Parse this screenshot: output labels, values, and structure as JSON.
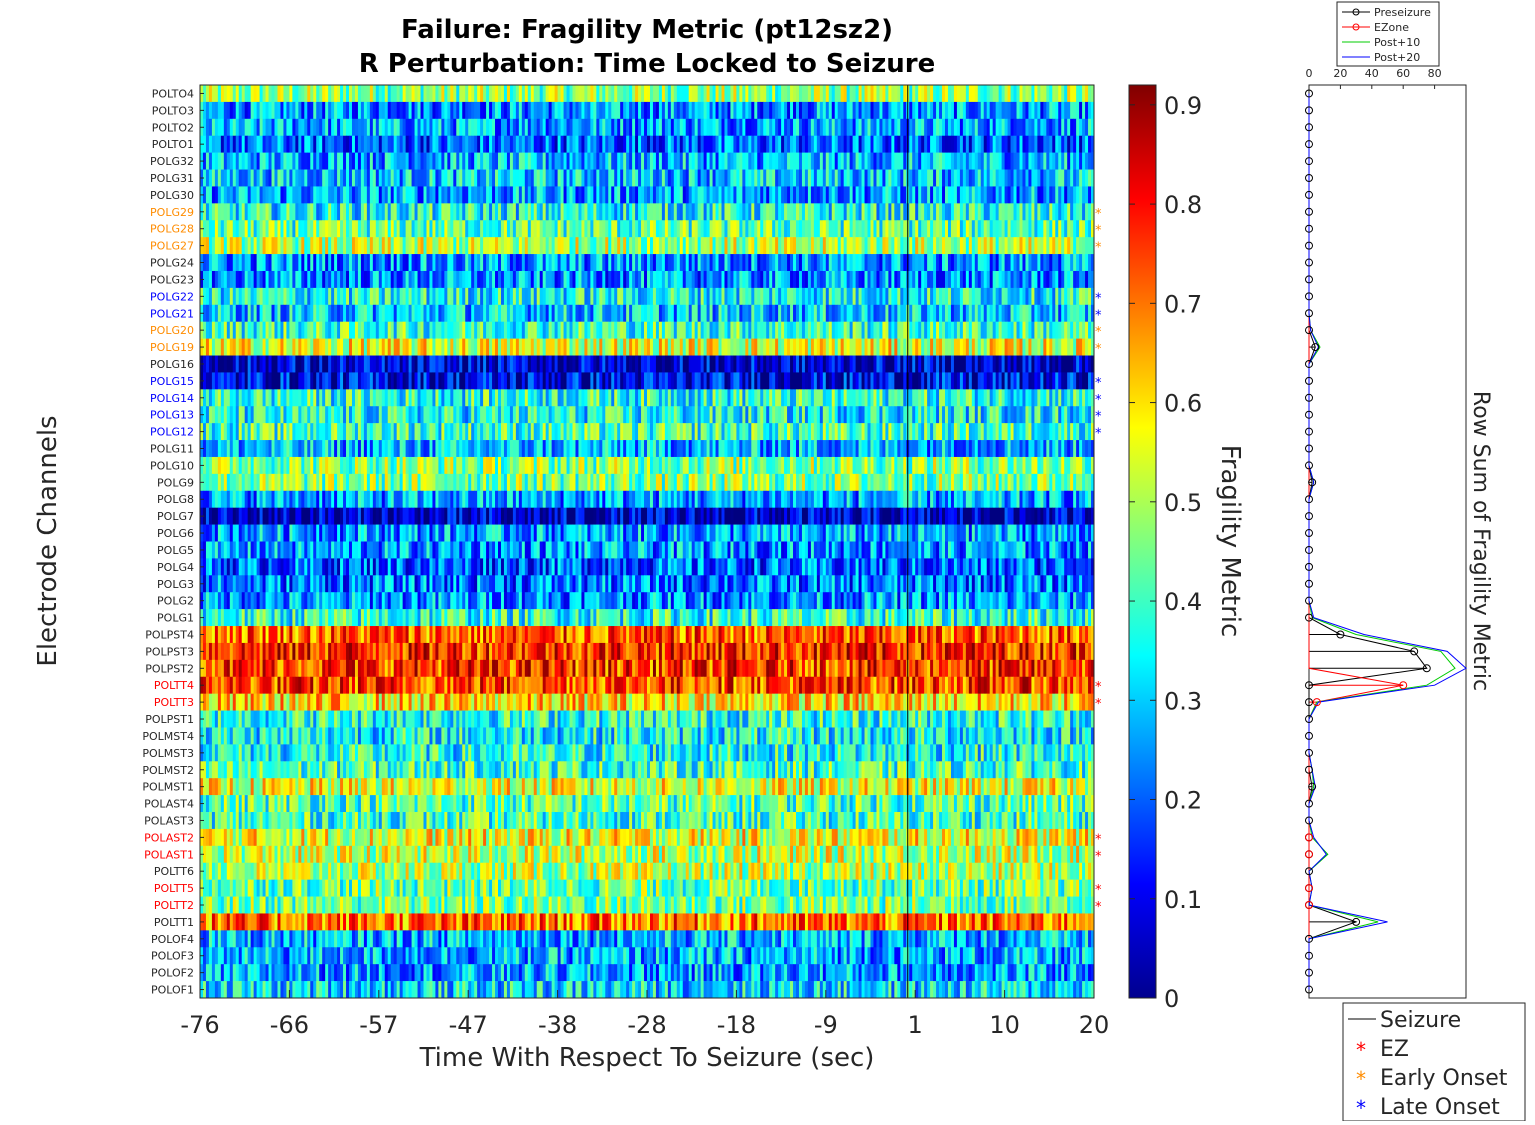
{
  "chart_data": [
    {
      "type": "heatmap",
      "title_line1": "Failure: Fragility Metric (pt12sz2)",
      "title_line2": "R Perturbation:  Time Locked to Seizure",
      "xlabel": "Time With Respect To Seizure (sec)",
      "ylabel": "Electrode Channels",
      "x_tick_labels": [
        "-76",
        "-66",
        "-57",
        "-47",
        "-38",
        "-28",
        "-18",
        "-9",
        "1",
        "10",
        "20"
      ],
      "xlim": [
        -76,
        20
      ],
      "colorbar": {
        "label": "Fragility Metric",
        "ticks": [
          "0",
          "0.1",
          "0.2",
          "0.3",
          "0.4",
          "0.5",
          "0.6",
          "0.7",
          "0.8",
          "0.9"
        ],
        "range": [
          0,
          0.92
        ],
        "colormap": "jet"
      },
      "channels": [
        {
          "name": "POLTO4",
          "group": "none",
          "mean": 0.47
        },
        {
          "name": "POLTO3",
          "group": "none",
          "mean": 0.25
        },
        {
          "name": "POLTO2",
          "group": "none",
          "mean": 0.27
        },
        {
          "name": "POLTO1",
          "group": "none",
          "mean": 0.2
        },
        {
          "name": "POLG32",
          "group": "none",
          "mean": 0.28
        },
        {
          "name": "POLG31",
          "group": "none",
          "mean": 0.3
        },
        {
          "name": "POLG30",
          "group": "none",
          "mean": 0.26
        },
        {
          "name": "POLG29",
          "group": "early",
          "mean": 0.36
        },
        {
          "name": "POLG28",
          "group": "early",
          "mean": 0.42
        },
        {
          "name": "POLG27",
          "group": "early",
          "mean": 0.5
        },
        {
          "name": "POLG24",
          "group": "none",
          "mean": 0.25
        },
        {
          "name": "POLG23",
          "group": "none",
          "mean": 0.24
        },
        {
          "name": "POLG22",
          "group": "late",
          "mean": 0.36
        },
        {
          "name": "POLG21",
          "group": "late",
          "mean": 0.3
        },
        {
          "name": "POLG20",
          "group": "early",
          "mean": 0.4
        },
        {
          "name": "POLG19",
          "group": "early",
          "mean": 0.55
        },
        {
          "name": "POLG16",
          "group": "none",
          "mean": 0.07
        },
        {
          "name": "POLG15",
          "group": "late",
          "mean": 0.1
        },
        {
          "name": "POLG14",
          "group": "late",
          "mean": 0.38
        },
        {
          "name": "POLG13",
          "group": "late",
          "mean": 0.35
        },
        {
          "name": "POLG12",
          "group": "late",
          "mean": 0.4
        },
        {
          "name": "POLG11",
          "group": "none",
          "mean": 0.28
        },
        {
          "name": "POLG10",
          "group": "none",
          "mean": 0.47
        },
        {
          "name": "POLG9",
          "group": "none",
          "mean": 0.46
        },
        {
          "name": "POLG8",
          "group": "none",
          "mean": 0.26
        },
        {
          "name": "POLG7",
          "group": "none",
          "mean": 0.05
        },
        {
          "name": "POLG6",
          "group": "none",
          "mean": 0.26
        },
        {
          "name": "POLG5",
          "group": "none",
          "mean": 0.25
        },
        {
          "name": "POLG4",
          "group": "none",
          "mean": 0.2
        },
        {
          "name": "POLG3",
          "group": "none",
          "mean": 0.22
        },
        {
          "name": "POLG2",
          "group": "none",
          "mean": 0.25
        },
        {
          "name": "POLG1",
          "group": "none",
          "mean": 0.38
        },
        {
          "name": "POLPST4",
          "group": "none",
          "mean": 0.72
        },
        {
          "name": "POLPST3",
          "group": "none",
          "mean": 0.78
        },
        {
          "name": "POLPST2",
          "group": "none",
          "mean": 0.76
        },
        {
          "name": "POLTT4",
          "group": "ez",
          "mean": 0.75
        },
        {
          "name": "POLTT3",
          "group": "ez",
          "mean": 0.6
        },
        {
          "name": "POLPST1",
          "group": "none",
          "mean": 0.38
        },
        {
          "name": "POLMST4",
          "group": "none",
          "mean": 0.35
        },
        {
          "name": "POLMST3",
          "group": "none",
          "mean": 0.36
        },
        {
          "name": "POLMST2",
          "group": "none",
          "mean": 0.4
        },
        {
          "name": "POLMST1",
          "group": "none",
          "mean": 0.55
        },
        {
          "name": "POLAST4",
          "group": "none",
          "mean": 0.42
        },
        {
          "name": "POLAST3",
          "group": "none",
          "mean": 0.4
        },
        {
          "name": "POLAST2",
          "group": "ez",
          "mean": 0.56
        },
        {
          "name": "POLAST1",
          "group": "ez",
          "mean": 0.52
        },
        {
          "name": "POLTT6",
          "group": "none",
          "mean": 0.5
        },
        {
          "name": "POLTT5",
          "group": "ez",
          "mean": 0.44
        },
        {
          "name": "POLTT2",
          "group": "ez",
          "mean": 0.45
        },
        {
          "name": "POLTT1",
          "group": "none",
          "mean": 0.7
        },
        {
          "name": "POLOF4",
          "group": "none",
          "mean": 0.28
        },
        {
          "name": "POLOF3",
          "group": "none",
          "mean": 0.27
        },
        {
          "name": "POLOF2",
          "group": "none",
          "mean": 0.26
        },
        {
          "name": "POLOF1",
          "group": "none",
          "mean": 0.32
        }
      ],
      "group_colors": {
        "none": "#262626",
        "ez": "#ff0000",
        "early": "#ff8c00",
        "late": "#0000ff"
      },
      "legend": {
        "placement": "bottom-right",
        "entries": [
          {
            "label": "Seizure",
            "marker": "line",
            "color": "#000000"
          },
          {
            "label": "EZ",
            "marker": "*",
            "color": "#ff0000"
          },
          {
            "label": "Early Onset",
            "marker": "*",
            "color": "#ff8c00"
          },
          {
            "label": "Late Onset",
            "marker": "*",
            "color": "#0000ff"
          }
        ]
      }
    },
    {
      "type": "line",
      "ylabel": "Row Sum of Fragility Metric",
      "x_tick_labels": [
        "0",
        "20",
        "40",
        "60",
        "80"
      ],
      "xlim": [
        0,
        100
      ],
      "legend": {
        "placement": "top",
        "entries": [
          {
            "label": "Preseizure",
            "color": "#000000"
          },
          {
            "label": "EZone",
            "color": "#ff0000"
          },
          {
            "label": "Post+10",
            "color": "#00cc00"
          },
          {
            "label": "Post+20",
            "color": "#0000ff"
          }
        ]
      },
      "series": [
        {
          "name": "Preseizure",
          "color": "#000000",
          "values": [
            0,
            0,
            0,
            0,
            0,
            0,
            0,
            0,
            0,
            0,
            0,
            0,
            0,
            0,
            0,
            4,
            0,
            0,
            0,
            0,
            0,
            0,
            0,
            2,
            0,
            0,
            0,
            0,
            0,
            0,
            0,
            0,
            20,
            67,
            75,
            0,
            0,
            0,
            0,
            0,
            0,
            2,
            0,
            0,
            0,
            0,
            0,
            0,
            0,
            30,
            0,
            0,
            0,
            0
          ]
        },
        {
          "name": "EZone",
          "color": "#ff0000",
          "values": [
            0,
            0,
            0,
            0,
            0,
            0,
            0,
            0,
            0,
            0,
            0,
            0,
            0,
            0,
            0,
            0,
            0,
            0,
            0,
            0,
            0,
            0,
            0,
            0,
            0,
            0,
            0,
            0,
            0,
            0,
            0,
            0,
            0,
            0,
            0,
            60,
            5,
            0,
            0,
            0,
            0,
            0,
            0,
            0,
            0,
            0,
            0,
            0,
            0,
            0,
            0,
            0,
            0,
            0
          ]
        },
        {
          "name": "Post+10",
          "color": "#00cc00",
          "values": [
            0,
            0,
            0,
            0,
            0,
            0,
            0,
            0,
            0,
            0,
            0,
            0,
            0,
            0,
            1,
            7,
            0,
            0,
            0,
            0,
            0,
            0,
            0,
            3,
            0,
            0,
            0,
            0,
            0,
            0,
            0,
            2,
            30,
            84,
            93,
            75,
            5,
            0,
            0,
            0,
            2,
            3,
            0,
            0,
            2,
            12,
            0,
            2,
            0,
            44,
            0,
            0,
            0,
            0
          ]
        },
        {
          "name": "Post+20",
          "color": "#0000ff",
          "values": [
            0,
            0,
            0,
            0,
            0,
            0,
            0,
            0,
            0,
            0,
            0,
            0,
            0,
            0,
            1,
            6,
            0,
            0,
            0,
            0,
            0,
            0,
            0,
            3,
            0,
            0,
            0,
            0,
            0,
            0,
            0,
            3,
            35,
            88,
            100,
            80,
            6,
            0,
            0,
            0,
            2,
            4,
            0,
            0,
            3,
            11,
            0,
            2,
            0,
            50,
            0,
            0,
            0,
            0
          ]
        }
      ]
    }
  ]
}
